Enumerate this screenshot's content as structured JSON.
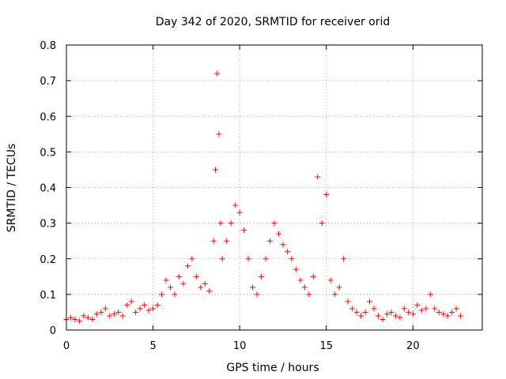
{
  "chart_data": {
    "type": "scatter",
    "title": "Day 342 of 2020, SRMTID for receiver orid",
    "xlabel": "GPS time / hours",
    "ylabel": "SRMTID / TECUs",
    "xlim": [
      0,
      24
    ],
    "ylim": [
      0,
      0.8
    ],
    "xticks": [
      0,
      5,
      10,
      15,
      20
    ],
    "yticks": [
      0,
      0.1,
      0.2,
      0.3,
      0.4,
      0.5,
      0.6,
      0.7,
      0.8
    ],
    "xtick_labels": [
      "0",
      "5",
      "10",
      "15",
      "20"
    ],
    "ytick_labels": [
      "0",
      "0.1",
      "0.2",
      "0.3",
      "0.4",
      "0.5",
      "0.6",
      "0.7",
      "0.8"
    ],
    "grid": true,
    "marker": "+",
    "series": [
      {
        "name": "SRMTID",
        "color": "#ff0000",
        "x": [
          0.0,
          0.25,
          0.5,
          0.75,
          1.0,
          1.25,
          1.5,
          1.75,
          2.0,
          2.25,
          2.5,
          2.75,
          3.0,
          3.25,
          3.5,
          3.75,
          4.0,
          4.25,
          4.5,
          4.75,
          5.0,
          5.25,
          5.5,
          5.75,
          6.0,
          6.25,
          6.5,
          6.75,
          7.0,
          7.25,
          7.5,
          7.75,
          8.0,
          8.25,
          8.5,
          8.6,
          8.7,
          8.8,
          8.9,
          9.0,
          9.25,
          9.5,
          9.75,
          10.0,
          10.25,
          10.5,
          10.75,
          11.0,
          11.25,
          11.5,
          11.75,
          12.0,
          12.25,
          12.5,
          12.75,
          13.0,
          13.25,
          13.5,
          13.75,
          14.0,
          14.25,
          14.5,
          14.75,
          15.0,
          15.25,
          15.5,
          15.75,
          16.0,
          16.25,
          16.5,
          16.75,
          17.0,
          17.25,
          17.5,
          17.75,
          18.0,
          18.25,
          18.5,
          18.75,
          19.0,
          19.25,
          19.5,
          19.75,
          20.0,
          20.25,
          20.5,
          20.75,
          21.0,
          21.25,
          21.5,
          21.75,
          22.0,
          22.25,
          22.5,
          22.75
        ],
        "y": [
          0.03,
          0.035,
          0.03,
          0.025,
          0.04,
          0.035,
          0.03,
          0.045,
          0.05,
          0.06,
          0.04,
          0.045,
          0.05,
          0.04,
          0.07,
          0.08,
          0.05,
          0.06,
          0.07,
          0.055,
          0.06,
          0.07,
          0.1,
          0.14,
          0.12,
          0.1,
          0.15,
          0.13,
          0.18,
          0.2,
          0.15,
          0.12,
          0.13,
          0.11,
          0.25,
          0.45,
          0.72,
          0.55,
          0.3,
          0.2,
          0.25,
          0.3,
          0.35,
          0.33,
          0.28,
          0.2,
          0.12,
          0.1,
          0.15,
          0.2,
          0.25,
          0.3,
          0.27,
          0.24,
          0.22,
          0.2,
          0.17,
          0.14,
          0.12,
          0.1,
          0.15,
          0.43,
          0.3,
          0.38,
          0.14,
          0.1,
          0.12,
          0.2,
          0.08,
          0.06,
          0.05,
          0.04,
          0.05,
          0.08,
          0.06,
          0.04,
          0.03,
          0.045,
          0.05,
          0.04,
          0.035,
          0.06,
          0.05,
          0.045,
          0.07,
          0.055,
          0.06,
          0.1,
          0.06,
          0.05,
          0.045,
          0.04,
          0.05,
          0.06,
          0.04
        ]
      }
    ]
  }
}
